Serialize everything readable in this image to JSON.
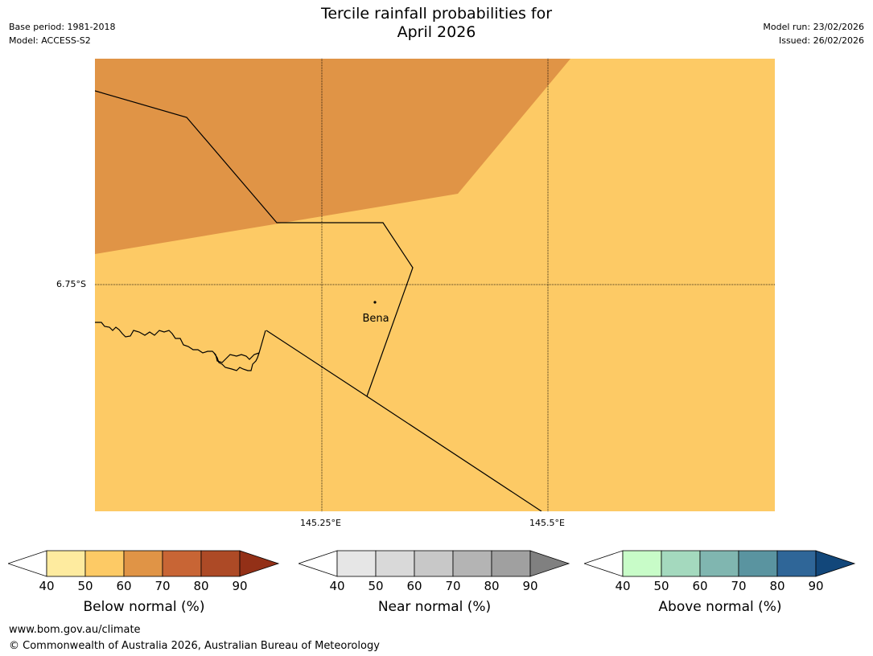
{
  "header": {
    "title_line1": "Tercile rainfall probabilities for",
    "title_line2": "April 2026",
    "base_period": "Base period: 1981-2018",
    "model": "Model: ACCESS-S2",
    "model_run": "Model run: 23/02/2026",
    "issued": "Issued: 26/02/2026"
  },
  "map": {
    "lat_label": "6.75°S",
    "lon_labels": [
      "145.25°E",
      "145.5°E"
    ],
    "place_name": "Bena",
    "fill_colors": {
      "below_50_60": "#fdca65",
      "below_60_70": "#e09446"
    }
  },
  "colorbars": [
    {
      "title": "Below normal (%)",
      "ticks": [
        "40",
        "50",
        "60",
        "70",
        "80",
        "90"
      ],
      "colors": [
        "#ffffff",
        "#feeb9f",
        "#fdca65",
        "#e09446",
        "#c86535",
        "#ad4a26",
        "#933017"
      ]
    },
    {
      "title": "Near normal (%)",
      "ticks": [
        "40",
        "50",
        "60",
        "70",
        "80",
        "90"
      ],
      "colors": [
        "#ffffff",
        "#e6e6e6",
        "#d9d9d9",
        "#c8c8c8",
        "#b4b4b4",
        "#a0a0a0",
        "#808080"
      ]
    },
    {
      "title": "Above normal (%)",
      "ticks": [
        "40",
        "50",
        "60",
        "70",
        "80",
        "90"
      ],
      "colors": [
        "#ffffff",
        "#c8fcc8",
        "#a4d9be",
        "#80b6b0",
        "#5a94a0",
        "#2f6698",
        "#12477a"
      ]
    }
  ],
  "footer": {
    "url": "www.bom.gov.au/climate",
    "copyright": "© Commonwealth of Australia 2026, Australian Bureau of Meteorology"
  }
}
